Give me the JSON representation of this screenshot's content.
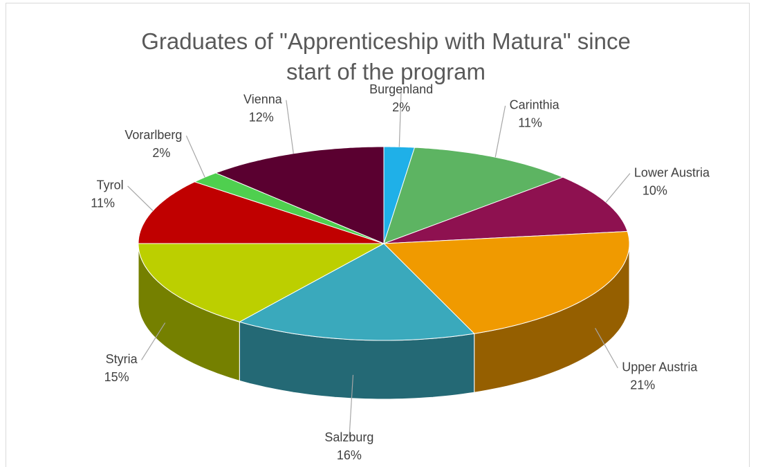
{
  "chart_data": {
    "type": "pie3d",
    "title": "Graduates of \"Apprenticeship with Matura\" since start of the program",
    "categories": [
      "Burgenland",
      "Carinthia",
      "Lower Austria",
      "Upper Austria",
      "Salzburg",
      "Styria",
      "Tyrol",
      "Vorarlberg",
      "Vienna"
    ],
    "values": [
      2,
      11,
      10,
      21,
      16,
      15,
      11,
      2,
      12
    ],
    "value_labels": [
      "2%",
      "11%",
      "10%",
      "21%",
      "16%",
      "15%",
      "11%",
      "2%",
      "12%"
    ],
    "colors": [
      "#1fb0e8",
      "#5db462",
      "#8e1150",
      "#f09a00",
      "#3aa9bc",
      "#bccf00",
      "#c00000",
      "#4fcf4f",
      "#5a0030"
    ]
  }
}
